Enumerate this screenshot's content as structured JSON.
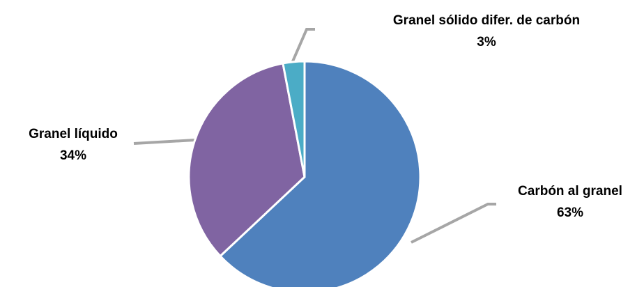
{
  "chart_data": {
    "type": "pie",
    "categories": [
      "Carbón al granel",
      "Granel líquido",
      "Granel sólido difer. de carbón"
    ],
    "values": [
      63,
      34,
      3
    ],
    "value_labels": [
      "63%",
      "34%",
      "3%"
    ],
    "colors": [
      "#4f81bd",
      "#8064a2",
      "#4bacc6"
    ]
  }
}
